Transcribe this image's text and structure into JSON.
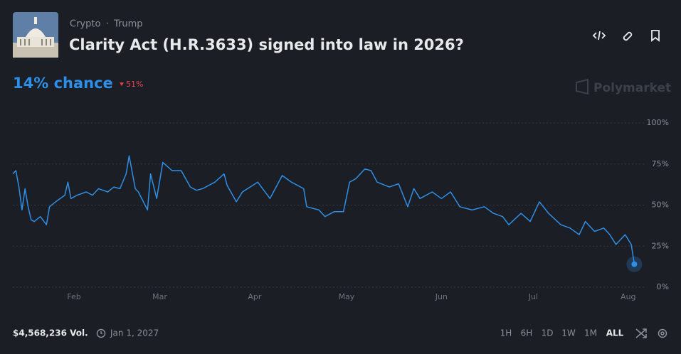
{
  "header": {
    "category": "Crypto",
    "tag": "Trump",
    "title": "Clarity Act (H.R.3633) signed into law in 2026?",
    "chance": "14% chance",
    "change": "51%",
    "brand": "Polymarket"
  },
  "footer": {
    "volume": "$4,568,236 Vol.",
    "end_date": "Jan 1, 2027",
    "ranges": [
      "1H",
      "6H",
      "1D",
      "1W",
      "1M",
      "ALL"
    ]
  },
  "chart_data": {
    "type": "line",
    "color": "#2e8fe6",
    "grid": true,
    "x": [
      11,
      12,
      13,
      14,
      15,
      16,
      17,
      18,
      20,
      22,
      23,
      25,
      28,
      29,
      30,
      32,
      35,
      37,
      39,
      42,
      44,
      46,
      48,
      49,
      51,
      52,
      55,
      56,
      58,
      60,
      63,
      66,
      69,
      71,
      73,
      77,
      80,
      81,
      84,
      86,
      91,
      95,
      99,
      102,
      106,
      107,
      111,
      113,
      116,
      119,
      121,
      123,
      126,
      128,
      130,
      134,
      137,
      140,
      142,
      144,
      148,
      151,
      154,
      157,
      161,
      165,
      168,
      171,
      173,
      177,
      180,
      183,
      186,
      190,
      193,
      196,
      198,
      201,
      204,
      206,
      208,
      211,
      213,
      214
    ],
    "values": [
      69,
      71,
      61,
      47,
      60,
      49,
      41,
      40,
      43,
      38,
      49,
      52,
      56,
      64,
      54,
      56,
      58,
      56,
      60,
      58,
      61,
      60,
      69,
      80,
      60,
      58,
      47,
      69,
      54,
      76,
      71,
      71,
      61,
      59,
      60,
      64,
      69,
      62,
      52,
      58,
      64,
      54,
      68,
      64,
      60,
      49,
      47,
      43,
      46,
      46,
      64,
      66,
      72,
      71,
      64,
      61,
      63,
      49,
      60,
      54,
      58,
      54,
      58,
      49,
      47,
      49,
      45,
      43,
      38,
      45,
      40,
      52,
      45,
      38,
      36,
      32,
      40,
      34,
      36,
      32,
      26,
      32,
      26,
      14
    ],
    "xlim": [
      11,
      216
    ],
    "xticks": [
      {
        "value": 31,
        "label": "Feb"
      },
      {
        "value": 59,
        "label": "Mar"
      },
      {
        "value": 90,
        "label": "Apr"
      },
      {
        "value": 120,
        "label": "May"
      },
      {
        "value": 151,
        "label": "Jun"
      },
      {
        "value": 181,
        "label": "Jul"
      },
      {
        "value": 212,
        "label": "Aug"
      }
    ],
    "ylim": [
      0,
      100
    ],
    "yticks": [
      {
        "value": 0,
        "label": "0%"
      },
      {
        "value": 25,
        "label": "25%"
      },
      {
        "value": 50,
        "label": "50%"
      },
      {
        "value": 75,
        "label": "75%"
      },
      {
        "value": 100,
        "label": "100%"
      }
    ]
  }
}
